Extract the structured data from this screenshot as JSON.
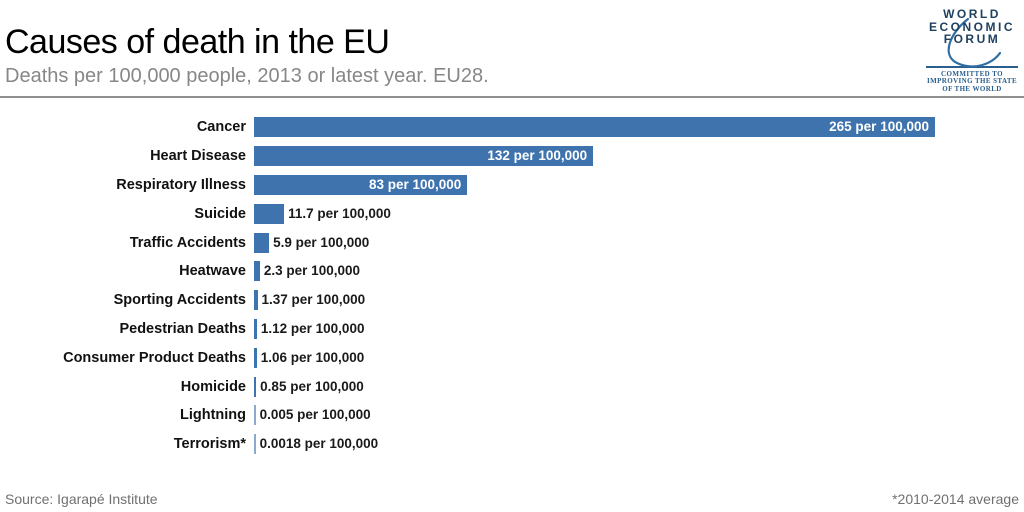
{
  "header": {
    "title": "Causes of death in the EU",
    "subtitle": "Deaths per 100,000 people, 2013 or latest year. EU28."
  },
  "logo": {
    "lines": [
      "WORLD",
      "ECONOMIC",
      "FORUM"
    ],
    "tagline": [
      "COMMITTED TO",
      "IMPROVING THE STATE",
      "OF THE WORLD"
    ],
    "wordmark_color": "#20405f",
    "swoosh_color": "#2e6da4",
    "tagline_color": "#2a5e8e"
  },
  "footer": {
    "source": "Source: Igarapé Institute",
    "note": "*2010-2014 average"
  },
  "chart_data": {
    "type": "bar",
    "orientation": "horizontal",
    "title": "Causes of death in the EU",
    "subtitle": "Deaths per 100,000 people, 2013 or latest year. EU28.",
    "unit": "per 100,000",
    "categories": [
      "Cancer",
      "Heart Disease",
      "Respiratory Illness",
      "Suicide",
      "Traffic Accidents",
      "Heatwave",
      "Sporting Accidents",
      "Pedestrian Deaths",
      "Consumer Product Deaths",
      "Homicide",
      "Lightning",
      "Terrorism*"
    ],
    "values": [
      265,
      132,
      83,
      11.7,
      5.9,
      2.3,
      1.37,
      1.12,
      1.06,
      0.85,
      0.005,
      0.0018
    ],
    "value_labels": [
      "265 per 100,000",
      "132 per 100,000",
      "83 per 100,000",
      "11.7 per 100,000",
      "5.9 per 100,000",
      "2.3 per 100,000",
      "1.37 per 100,000",
      "1.12 per 100,000",
      "1.06 per 100,000",
      "0.85 per 100,000",
      "0.005 per 100,000",
      "0.0018 per 100,000"
    ],
    "xlim": [
      0,
      265
    ],
    "bar_color": "#3E73AE",
    "grid": false,
    "legend": false
  }
}
